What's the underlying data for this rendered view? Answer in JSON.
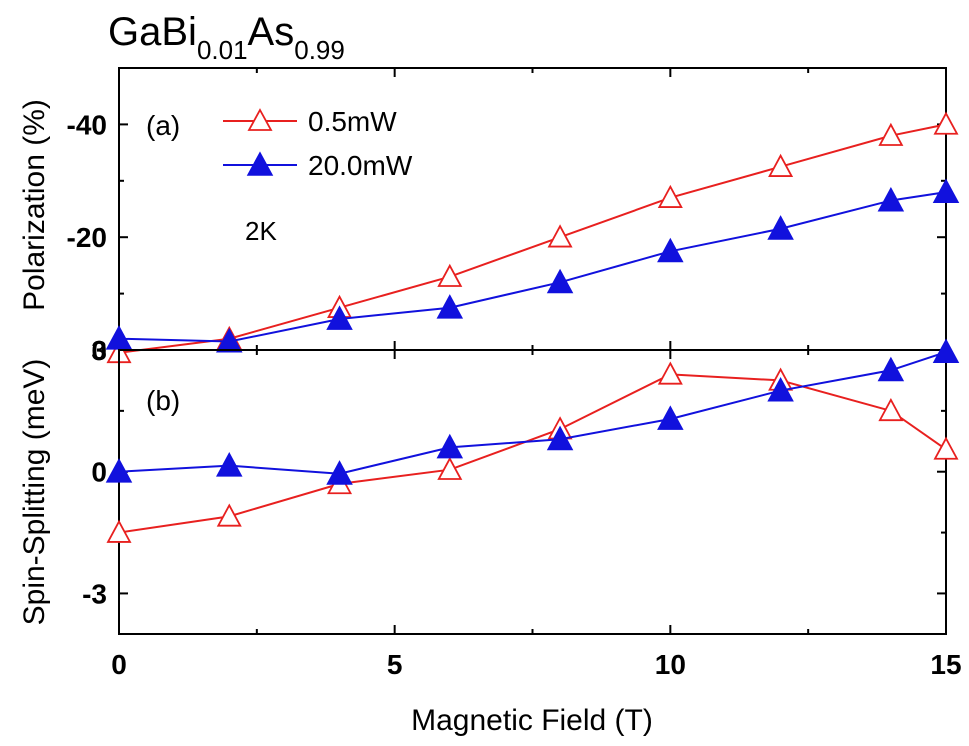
{
  "title": {
    "base1": "GaBi",
    "sub1": "0.01",
    "base2": "As",
    "sub2": "0.99"
  },
  "chart_data": [
    {
      "type": "line",
      "panel_label": "(a)",
      "ylabel": "Polarization (%)",
      "annotation": "2K",
      "xlim": [
        0,
        15
      ],
      "ylim": [
        0,
        -50
      ],
      "yticks": [
        {
          "value": 0,
          "label": "0"
        },
        {
          "value": -20,
          "label": "-20"
        },
        {
          "value": -40,
          "label": "-40"
        }
      ],
      "legend": "top-left",
      "series": [
        {
          "name": "0.5mW",
          "color": "#e8201f",
          "marker": "open-triangle",
          "x": [
            0,
            2,
            4,
            6,
            8,
            10,
            12,
            14,
            15
          ],
          "y": [
            0.5,
            -2,
            -7.5,
            -13,
            -20,
            -27,
            -32.5,
            -38,
            -40
          ]
        },
        {
          "name": "20.0mW",
          "color": "#1111dd",
          "marker": "filled-triangle",
          "x": [
            0,
            2,
            4,
            6,
            8,
            10,
            12,
            14,
            15
          ],
          "y": [
            -2,
            -1.5,
            -5.5,
            -7.5,
            -12,
            -17.5,
            -21.5,
            -26.5,
            -28
          ]
        }
      ]
    },
    {
      "type": "line",
      "panel_label": "(b)",
      "ylabel": "Spin-Splitting (meV)",
      "xlabel": "Magnetic Field (T)",
      "xlim": [
        0,
        15
      ],
      "ylim": [
        -4,
        3
      ],
      "xticks": [
        {
          "value": 0,
          "label": "0"
        },
        {
          "value": 5,
          "label": "5"
        },
        {
          "value": 10,
          "label": "10"
        },
        {
          "value": 15,
          "label": "15"
        }
      ],
      "yticks": [
        {
          "value": -3,
          "label": "-3"
        },
        {
          "value": 0,
          "label": "0"
        },
        {
          "value": 3,
          "label": "3"
        }
      ],
      "series": [
        {
          "name": "0.5mW",
          "color": "#e8201f",
          "marker": "open-triangle",
          "x": [
            0,
            2,
            4,
            6,
            8,
            10,
            12,
            14,
            15
          ],
          "y": [
            -1.5,
            -1.1,
            -0.3,
            0.05,
            1.05,
            2.4,
            2.25,
            1.5,
            0.55
          ]
        },
        {
          "name": "20.0mW",
          "color": "#1111dd",
          "marker": "filled-triangle",
          "x": [
            0,
            2,
            4,
            6,
            8,
            10,
            12,
            14,
            15
          ],
          "y": [
            0,
            0.15,
            -0.05,
            0.6,
            0.8,
            1.3,
            2.0,
            2.5,
            2.95
          ]
        }
      ]
    }
  ]
}
